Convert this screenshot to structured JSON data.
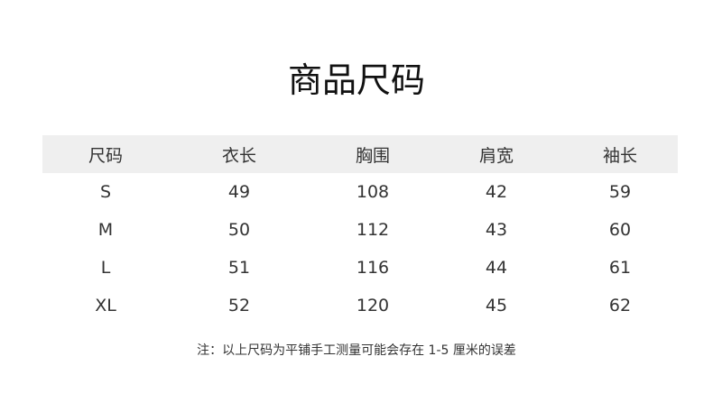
{
  "title": "商品尺码",
  "table": {
    "headers": [
      "尺码",
      "衣长",
      "胸围",
      "肩宽",
      "袖长"
    ],
    "rows": [
      [
        "S",
        "49",
        "108",
        "42",
        "59"
      ],
      [
        "M",
        "50",
        "112",
        "43",
        "60"
      ],
      [
        "L",
        "51",
        "116",
        "44",
        "61"
      ],
      [
        "XL",
        "52",
        "120",
        "45",
        "62"
      ]
    ]
  },
  "note": "注：以上尺码为平铺手工测量可能会存在 1-5 厘米的误差",
  "colors": {
    "header_bg": "#efefef",
    "text": "#333333"
  }
}
